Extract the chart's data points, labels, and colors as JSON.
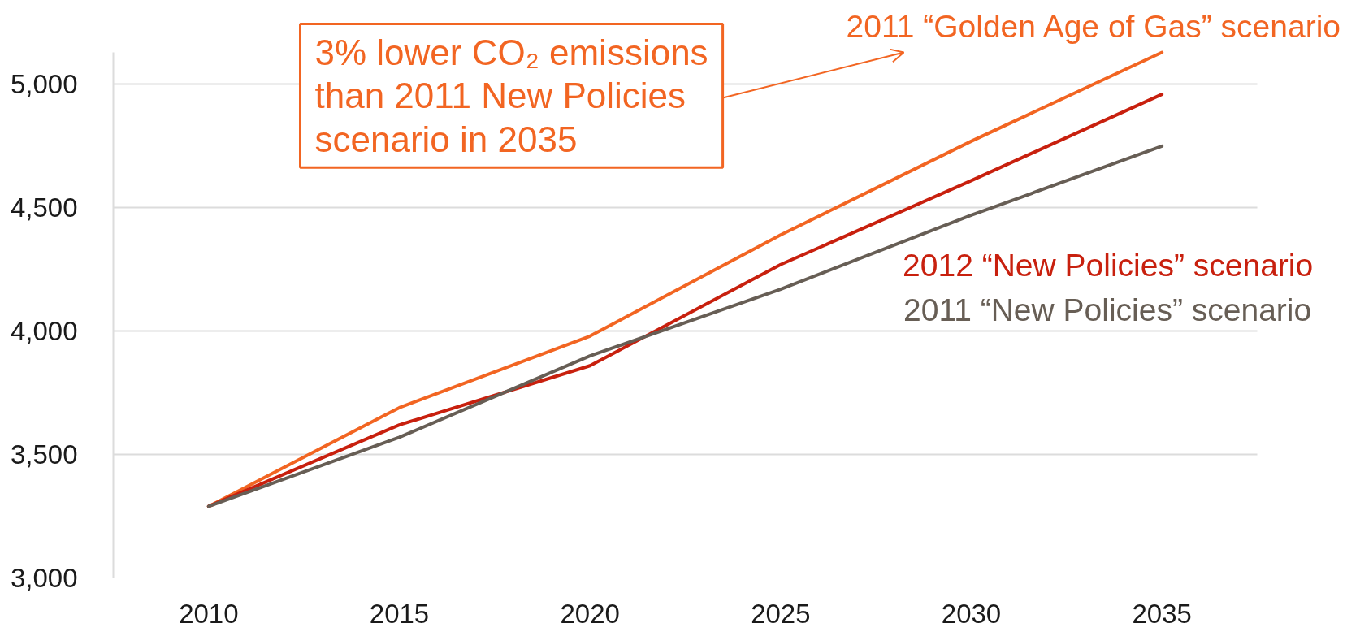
{
  "chart_data": {
    "type": "line",
    "x": [
      2010,
      2015,
      2020,
      2025,
      2030,
      2035
    ],
    "series": [
      {
        "name": "2011 “Golden Age of Gas” scenario",
        "color": "#f26522",
        "values": [
          3290,
          3690,
          3980,
          4390,
          4770,
          5130
        ]
      },
      {
        "name": "2012 “New Policies” scenario",
        "color": "#c8200e",
        "values": [
          3290,
          3620,
          3860,
          4270,
          4610,
          4960
        ]
      },
      {
        "name": "2011 “New Policies” scenario",
        "color": "#675e55",
        "values": [
          3290,
          3570,
          3900,
          4170,
          4470,
          4750
        ]
      }
    ],
    "xlim": [
      2007.5,
      2037.5
    ],
    "ylim": [
      3000,
      5130
    ],
    "xticks": [
      2010,
      2015,
      2020,
      2025,
      2030,
      2035
    ],
    "yticks": [
      {
        "value": 3000,
        "label": "3,000"
      },
      {
        "value": 3500,
        "label": "3,500"
      },
      {
        "value": 4000,
        "label": "4,000"
      },
      {
        "value": 4500,
        "label": "4,500"
      },
      {
        "value": 5000,
        "label": "5,000"
      }
    ],
    "grid": "y",
    "annotations": [
      "3% lower CO₂ emissions than 2011 New Policies scenario in 2035"
    ]
  }
}
